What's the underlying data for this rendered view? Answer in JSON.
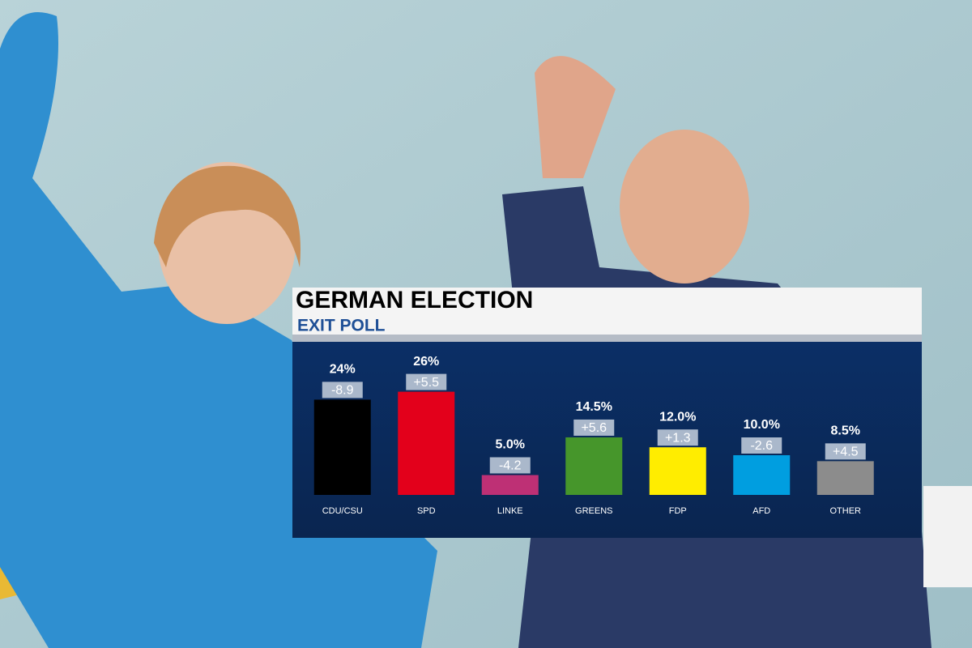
{
  "chart_data": {
    "type": "bar",
    "title": "GERMAN ELECTION",
    "subtitle": "EXIT POLL",
    "categories": [
      "CDU/CSU",
      "SPD",
      "LINKE",
      "GREENS",
      "FDP",
      "AFD",
      "OTHER"
    ],
    "values": [
      24,
      26,
      5.0,
      14.5,
      12.0,
      10.0,
      8.5
    ],
    "value_labels": [
      "24%",
      "26%",
      "5.0%",
      "14.5%",
      "12.0%",
      "10.0%",
      "8.5%"
    ],
    "changes": [
      -8.9,
      5.5,
      -4.2,
      5.6,
      1.3,
      -2.6,
      4.5
    ],
    "change_labels": [
      "-8.9",
      "+5.5",
      "-4.2",
      "+5.6",
      "+1.3",
      "-2.6",
      "+4.5"
    ],
    "colors": [
      "#000000",
      "#e3001b",
      "#be3075",
      "#46962b",
      "#ffed00",
      "#009ee0",
      "#8c8c8c"
    ]
  }
}
